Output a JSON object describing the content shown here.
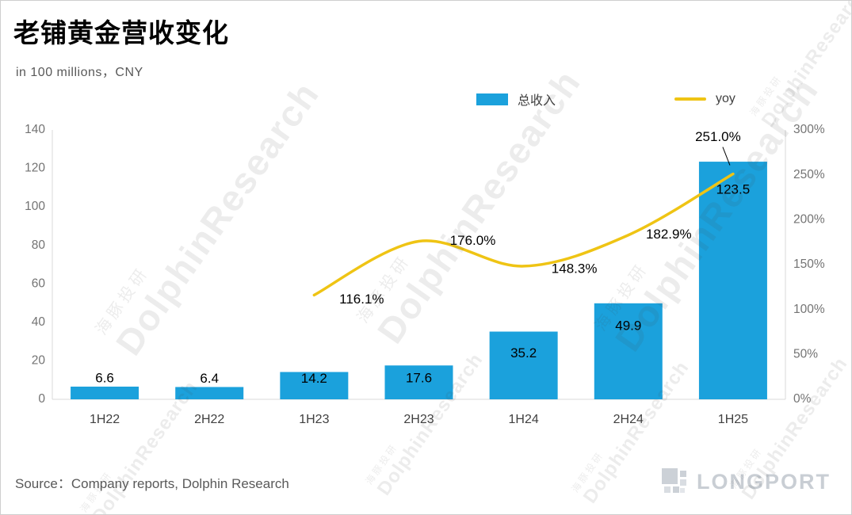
{
  "header": {
    "title": "老铺黄金营收变化",
    "subtitle": "in 100 millions，CNY"
  },
  "legend": {
    "revenue_label": "总收入",
    "yoy_label": "yoy"
  },
  "footer": {
    "source": "Source：Company reports, Dolphin Research",
    "logo": "LONGPORT"
  },
  "watermark": {
    "en": "DolphinResearch",
    "zh": "海豚投研"
  },
  "colors": {
    "bar": "#1ba1dc",
    "line": "#efc414",
    "axis_text": "#737373",
    "category_text": "#404040",
    "grid": "#d9d9d9",
    "label_text": "#000000"
  },
  "chart_data": {
    "type": "bar",
    "title": "老铺黄金营收变化",
    "subtitle": "in 100 millions，CNY",
    "categories": [
      "1H22",
      "2H22",
      "1H23",
      "2H23",
      "1H24",
      "2H24",
      "1H25"
    ],
    "series": [
      {
        "name": "总收入",
        "type": "bar",
        "axis": "left",
        "values": [
          6.6,
          6.4,
          14.2,
          17.6,
          35.2,
          49.9,
          123.5
        ],
        "labels": [
          "6.6",
          "6.4",
          "14.2",
          "17.6",
          "35.2",
          "49.9",
          "123.5"
        ]
      },
      {
        "name": "yoy",
        "type": "line",
        "axis": "right",
        "start_category_index": 2,
        "values_pct": [
          116.1,
          176.0,
          148.3,
          182.9,
          251.0
        ],
        "labels": [
          "116.1%",
          "176.0%",
          "148.3%",
          "182.9%",
          "251.0%"
        ]
      }
    ],
    "left_axis": {
      "min": 0,
      "max": 140,
      "step": 20,
      "ticks": [
        "140",
        "120",
        "100",
        "80",
        "60",
        "40",
        "20",
        "0"
      ]
    },
    "right_axis": {
      "min": 0,
      "max": 300,
      "step": 50,
      "ticks": [
        "300%",
        "250%",
        "200%",
        "150%",
        "100%",
        "50%",
        "0%"
      ]
    },
    "grid": "off",
    "legend_position": "top"
  }
}
